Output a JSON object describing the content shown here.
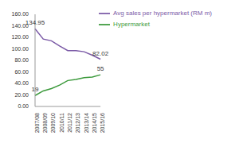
{
  "chart_data": {
    "type": "line",
    "categories": [
      "2007/08",
      "2008/09",
      "2009/10",
      "2010/11",
      "2011/12",
      "2012/13",
      "2013/14",
      "2014/15",
      "2015/16"
    ],
    "series": [
      {
        "name": "Avg sales per hypermarket (RM m)",
        "color": "#7b5aa6",
        "values": [
          134.95,
          117,
          114,
          105,
          97,
          97,
          95,
          89,
          82.02
        ],
        "value_labels": [
          "134.95",
          null,
          null,
          null,
          null,
          null,
          null,
          null,
          "82.02"
        ]
      },
      {
        "name": "Hypermarket",
        "color": "#3c9a3c",
        "values": [
          19,
          27,
          31,
          37,
          45,
          47,
          50,
          51,
          55
        ],
        "value_labels": [
          "19",
          null,
          null,
          null,
          null,
          null,
          null,
          null,
          "55"
        ]
      }
    ],
    "ylim": [
      0,
      160
    ],
    "yticks": [
      {
        "value": 0,
        "label": "0.00"
      },
      {
        "value": 20,
        "label": "20.00"
      },
      {
        "value": 40,
        "label": "40.00"
      },
      {
        "value": 60,
        "label": "60.00"
      },
      {
        "value": 80,
        "label": "80.00"
      },
      {
        "value": 100,
        "label": "100.00"
      },
      {
        "value": 120,
        "label": "120.00"
      },
      {
        "value": 140,
        "label": "140.00"
      },
      {
        "value": 160,
        "label": "160.00"
      }
    ],
    "grid": false,
    "legend": "upper right",
    "data_labels": true
  }
}
